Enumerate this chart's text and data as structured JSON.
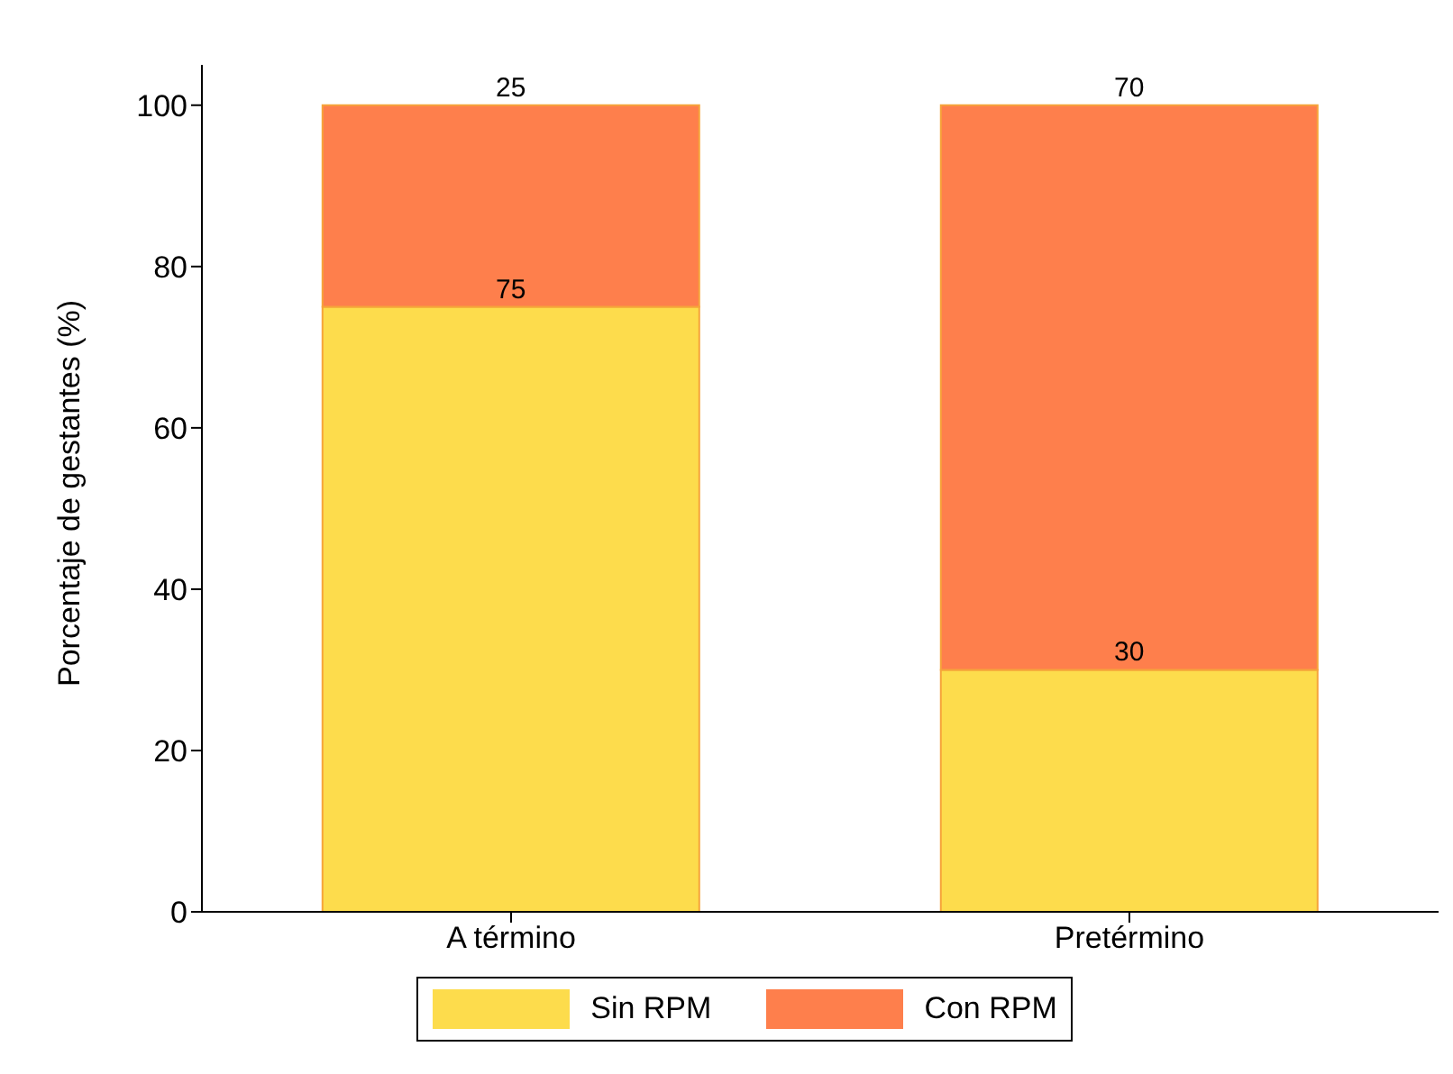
{
  "chart_data": {
    "type": "bar",
    "stacked": true,
    "ylabel": "Porcentaje de gestantes (%)",
    "categories": [
      "A término",
      "Pretérmino"
    ],
    "series": [
      {
        "name": "Sin RPM",
        "color": "#fddc4c",
        "values": [
          75,
          30
        ]
      },
      {
        "name": "Con RPM",
        "color": "#fe7f4c",
        "values": [
          25,
          70
        ]
      }
    ],
    "ylim": [
      0,
      105
    ],
    "yticks": [
      0,
      20,
      40,
      60,
      80,
      100
    ],
    "grid": false,
    "legend": "bottom",
    "data_labels": true
  }
}
